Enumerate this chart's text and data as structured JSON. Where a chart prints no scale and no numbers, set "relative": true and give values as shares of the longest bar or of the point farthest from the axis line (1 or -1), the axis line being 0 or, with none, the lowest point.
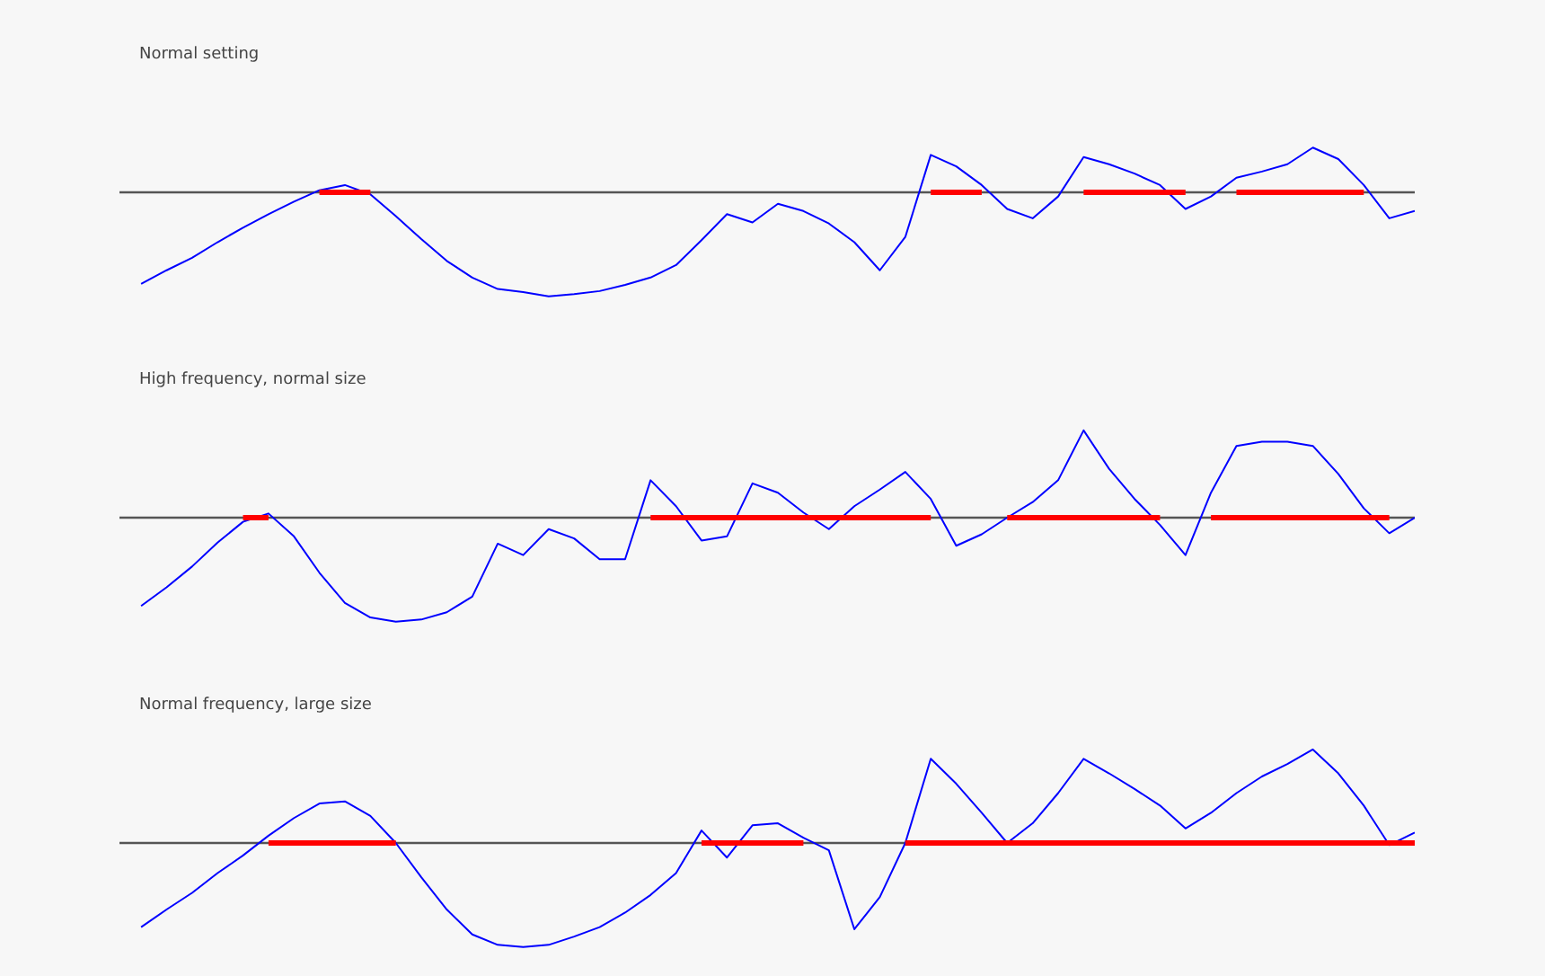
{
  "chart_data": [
    {
      "type": "line",
      "title": "Normal setting",
      "relative": true,
      "tick_labels": false,
      "grid": false,
      "categories": [
        null,
        null,
        null,
        null,
        null,
        null,
        null,
        null,
        null,
        null,
        null,
        null,
        null,
        null,
        null,
        null,
        null,
        null,
        null,
        null,
        null,
        null,
        null,
        null,
        null,
        null,
        null,
        null,
        null,
        null,
        null,
        null,
        null,
        null,
        null,
        null,
        null,
        null,
        null,
        null,
        null,
        null,
        null,
        null,
        null,
        null,
        null,
        null,
        null,
        null,
        null
      ],
      "ref_lines": [
        {
          "axis": "y",
          "value": 0,
          "color": "#555555"
        }
      ],
      "series": [
        {
          "color": "#0000ff",
          "values": [
            -0.88,
            -0.75,
            -0.63,
            -0.48,
            -0.34,
            -0.21,
            -0.09,
            0.02,
            0.07,
            -0.02,
            -0.23,
            -0.45,
            -0.66,
            -0.82,
            -0.93,
            -0.96,
            -1,
            -0.98,
            -0.95,
            -0.89,
            -0.82,
            -0.7,
            -0.46,
            -0.21,
            -0.29,
            -0.11,
            -0.18,
            -0.3,
            -0.48,
            -0.75,
            -0.43,
            0.36,
            0.25,
            0.07,
            -0.16,
            -0.25,
            -0.04,
            0.34,
            0.27,
            0.18,
            0.07,
            -0.16,
            -0.04,
            0.14,
            0.2,
            0.27,
            0.43,
            0.32,
            0.07,
            -0.25,
            -0.18
          ]
        },
        {
          "color": "#ff0000",
          "values": [
            null,
            null,
            null,
            null,
            null,
            null,
            null,
            0,
            0,
            0,
            null,
            null,
            null,
            null,
            null,
            null,
            null,
            null,
            null,
            null,
            null,
            null,
            null,
            null,
            null,
            null,
            null,
            null,
            null,
            null,
            null,
            0,
            0,
            0,
            null,
            null,
            null,
            0,
            0,
            0,
            0,
            0,
            null,
            0,
            0,
            0,
            0,
            0,
            0,
            null,
            null
          ]
        }
      ]
    },
    {
      "type": "line",
      "title": "High frequency, normal size",
      "relative": true,
      "tick_labels": false,
      "grid": false,
      "categories": [
        null,
        null,
        null,
        null,
        null,
        null,
        null,
        null,
        null,
        null,
        null,
        null,
        null,
        null,
        null,
        null,
        null,
        null,
        null,
        null,
        null,
        null,
        null,
        null,
        null,
        null,
        null,
        null,
        null,
        null,
        null,
        null,
        null,
        null,
        null,
        null,
        null,
        null,
        null,
        null,
        null,
        null,
        null,
        null,
        null,
        null,
        null,
        null,
        null,
        null,
        null
      ],
      "ref_lines": [
        {
          "axis": "y",
          "value": 0,
          "color": "#555555"
        }
      ],
      "series": [
        {
          "color": "#0000ff",
          "values": [
            -0.85,
            -0.67,
            -0.47,
            -0.24,
            -0.04,
            0.04,
            -0.18,
            -0.53,
            -0.82,
            -0.96,
            -1,
            -0.98,
            -0.91,
            -0.76,
            -0.25,
            -0.36,
            -0.11,
            -0.2,
            -0.4,
            -0.4,
            0.36,
            0.11,
            -0.22,
            -0.18,
            0.33,
            0.24,
            0.05,
            -0.11,
            0.11,
            0.27,
            0.44,
            0.18,
            -0.27,
            -0.16,
            0,
            0.15,
            0.36,
            0.84,
            0.47,
            0.18,
            -0.07,
            -0.36,
            0.24,
            0.69,
            0.73,
            0.73,
            0.69,
            0.42,
            0.09,
            -0.15,
            0
          ]
        },
        {
          "color": "#ff0000",
          "values": [
            null,
            null,
            null,
            null,
            0,
            0,
            null,
            null,
            null,
            null,
            null,
            null,
            null,
            null,
            null,
            null,
            null,
            null,
            null,
            null,
            0,
            0,
            0,
            0,
            0,
            0,
            0,
            0,
            0,
            0,
            0,
            0,
            null,
            null,
            0,
            0,
            0,
            0,
            0,
            0,
            0,
            null,
            0,
            0,
            0,
            0,
            0,
            0,
            0,
            0,
            null
          ]
        }
      ]
    },
    {
      "type": "line",
      "title": "Normal frequency, large size",
      "relative": true,
      "tick_labels": false,
      "grid": false,
      "categories": [
        null,
        null,
        null,
        null,
        null,
        null,
        null,
        null,
        null,
        null,
        null,
        null,
        null,
        null,
        null,
        null,
        null,
        null,
        null,
        null,
        null,
        null,
        null,
        null,
        null,
        null,
        null,
        null,
        null,
        null,
        null,
        null,
        null,
        null,
        null,
        null,
        null,
        null,
        null,
        null,
        null,
        null,
        null,
        null,
        null,
        null,
        null,
        null,
        null,
        null,
        null
      ],
      "ref_lines": [
        {
          "axis": "y",
          "value": 0,
          "color": "#555555"
        }
      ],
      "series": [
        {
          "color": "#0000ff",
          "values": [
            -0.81,
            -0.64,
            -0.48,
            -0.29,
            -0.12,
            0.07,
            0.24,
            0.38,
            0.4,
            0.26,
            0,
            -0.33,
            -0.64,
            -0.88,
            -0.98,
            -1,
            -0.98,
            -0.9,
            -0.81,
            -0.67,
            -0.5,
            -0.29,
            0.12,
            -0.14,
            0.17,
            0.19,
            0.05,
            -0.07,
            -0.83,
            -0.52,
            0,
            0.81,
            0.57,
            0.29,
            0,
            0.19,
            0.48,
            0.81,
            0.67,
            0.52,
            0.36,
            0.14,
            0.29,
            0.48,
            0.64,
            0.76,
            0.9,
            0.67,
            0.36,
            -0.02,
            0.1
          ]
        },
        {
          "color": "#ff0000",
          "values": [
            null,
            null,
            null,
            null,
            null,
            0,
            0,
            0,
            0,
            0,
            0,
            null,
            null,
            null,
            null,
            null,
            null,
            null,
            null,
            null,
            null,
            null,
            0,
            0,
            0,
            0,
            0,
            null,
            null,
            null,
            0,
            0,
            0,
            0,
            0,
            0,
            0,
            0,
            0,
            0,
            0,
            0,
            0,
            0,
            0,
            0,
            0,
            0,
            0,
            0,
            0
          ]
        }
      ]
    }
  ]
}
